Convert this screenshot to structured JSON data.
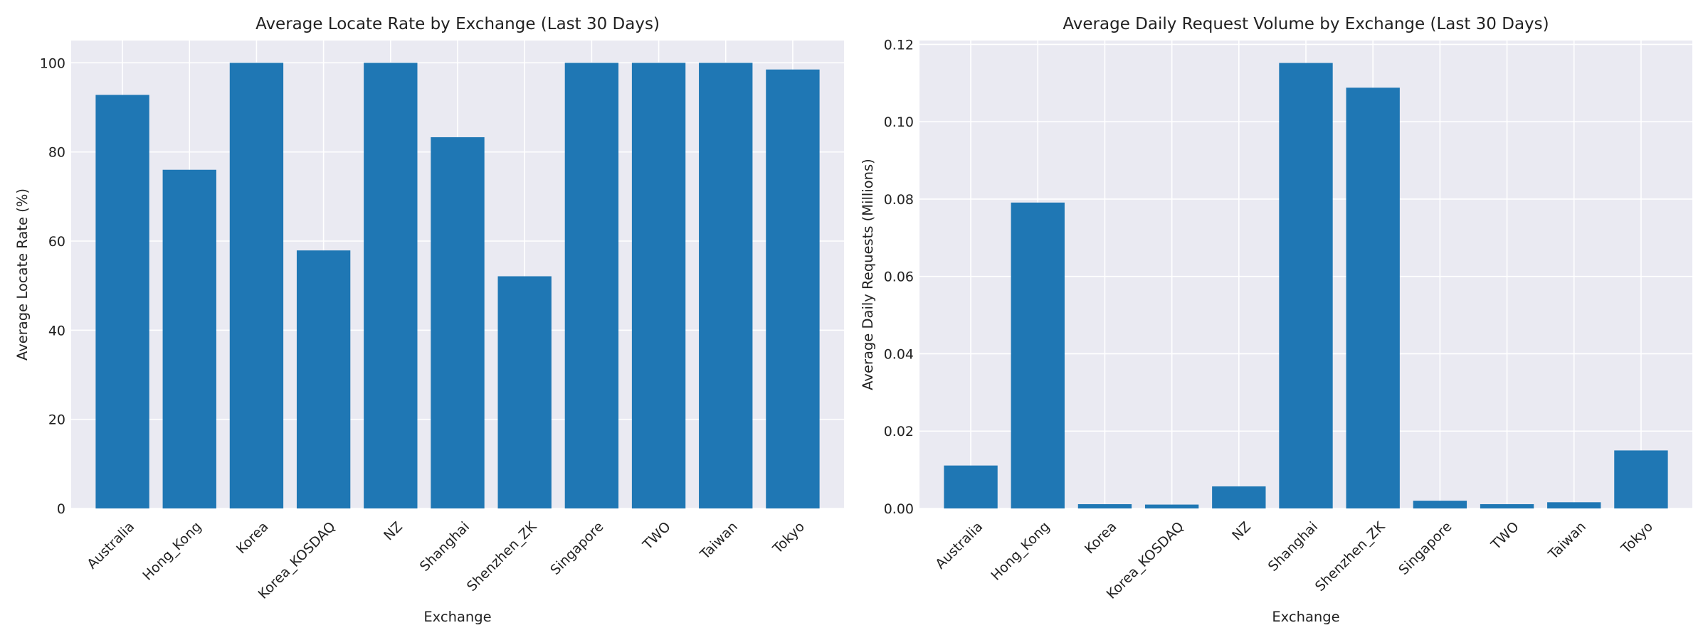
{
  "chart_data": [
    {
      "type": "bar",
      "title": "Average Locate Rate by Exchange (Last 30 Days)",
      "xlabel": "Exchange",
      "ylabel": "Average Locate Rate (%)",
      "categories": [
        "Australia",
        "Hong_Kong",
        "Korea",
        "Korea_KOSDAQ",
        "NZ",
        "Shanghai",
        "Shenzhen_ZK",
        "Singapore",
        "TWO",
        "Taiwan",
        "Tokyo"
      ],
      "values": [
        92.8,
        76.0,
        100.0,
        57.9,
        100.0,
        83.3,
        52.1,
        100.0,
        100.0,
        100.0,
        98.5
      ],
      "ylim": [
        0,
        105
      ],
      "yticks": [
        0,
        20,
        40,
        60,
        80,
        100
      ],
      "ytick_labels": [
        "0",
        "20",
        "40",
        "60",
        "80",
        "100"
      ],
      "color": "#1f77b4",
      "grid": true
    },
    {
      "type": "bar",
      "title": "Average Daily Request Volume by Exchange (Last 30 Days)",
      "xlabel": "Exchange",
      "ylabel": "Average Daily Requests (Millions)",
      "categories": [
        "Australia",
        "Hong_Kong",
        "Korea",
        "Korea_KOSDAQ",
        "NZ",
        "Shanghai",
        "Shenzhen_ZK",
        "Singapore",
        "TWO",
        "Taiwan",
        "Tokyo"
      ],
      "values": [
        0.0111,
        0.0791,
        0.0011,
        0.001,
        0.0057,
        0.1152,
        0.1088,
        0.002,
        0.0011,
        0.0016,
        0.015
      ],
      "ylim": [
        0,
        0.121
      ],
      "yticks": [
        0,
        0.02,
        0.04,
        0.06,
        0.08,
        0.1,
        0.12
      ],
      "ytick_labels": [
        "0.00",
        "0.02",
        "0.04",
        "0.06",
        "0.08",
        "0.10",
        "0.12"
      ],
      "color": "#1f77b4",
      "grid": true
    }
  ]
}
